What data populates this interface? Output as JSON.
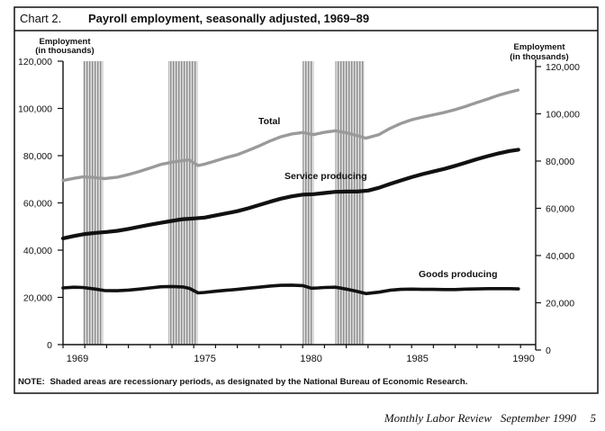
{
  "figure": {
    "label": "Chart 2.",
    "note": {
      "label": "NOTE:",
      "text": "Shaded areas are recessionary periods, as designated by the National Bureau of Economic Research."
    }
  },
  "footer": {
    "journal": "Monthly Labor Review",
    "issue": "September 1990",
    "page": "5"
  },
  "chart_data": {
    "type": "line",
    "title": "Payroll employment, seasonally adjusted, 1969–89",
    "ylabel": {
      "line1": "Employment",
      "line2": "(in thousands)"
    },
    "ylabel_right": {
      "line1": "Employment",
      "line2": "(in thousands)"
    },
    "xlim": [
      1969,
      1990.7
    ],
    "ylim": [
      0,
      120000
    ],
    "grid": false,
    "legend": "none",
    "xticks": {
      "values": [
        1969,
        1975,
        1980,
        1985,
        1990
      ],
      "labels": [
        "1969",
        "1975",
        "1980",
        "1985",
        "1990"
      ]
    },
    "yticks": {
      "values": [
        0,
        20000,
        40000,
        60000,
        80000,
        100000,
        120000
      ],
      "labels": [
        "0",
        "20,000",
        "40,000",
        "60,000",
        "80,000",
        "100,000",
        "120,000"
      ]
    },
    "yticks_right": {
      "values": [
        0,
        20000,
        40000,
        60000,
        80000,
        100000,
        120000
      ],
      "labels": [
        "0",
        "20,000",
        "40,000",
        "60,000",
        "80,000",
        "100,000",
        "120,000"
      ]
    },
    "shaded_periods": [
      {
        "start": 1969.92,
        "end": 1970.83
      },
      {
        "start": 1973.83,
        "end": 1975.17
      },
      {
        "start": 1980.0,
        "end": 1980.5
      },
      {
        "start": 1981.5,
        "end": 1982.83
      }
    ],
    "series": [
      {
        "name": "Total",
        "color": "#9a9a9a",
        "x": [
          1969.0,
          1969.5,
          1969.9,
          1970.4,
          1970.9,
          1971.5,
          1972.0,
          1972.5,
          1973.0,
          1973.5,
          1974.0,
          1974.5,
          1974.8,
          1975.2,
          1975.5,
          1976.0,
          1976.5,
          1977.0,
          1977.5,
          1978.0,
          1978.5,
          1979.0,
          1979.5,
          1980.0,
          1980.5,
          1981.0,
          1981.5,
          1982.0,
          1982.5,
          1982.9,
          1983.5,
          1984.0,
          1984.5,
          1985.0,
          1985.5,
          1986.0,
          1986.5,
          1987.0,
          1987.5,
          1988.0,
          1988.5,
          1989.0,
          1989.5,
          1989.9
        ],
        "y": [
          69500,
          70400,
          71000,
          70800,
          70300,
          70900,
          72000,
          73300,
          74800,
          76300,
          77200,
          77900,
          78200,
          75800,
          76400,
          77800,
          79200,
          80400,
          82200,
          84100,
          86200,
          88000,
          89200,
          89800,
          88900,
          89900,
          90500,
          89700,
          88500,
          87400,
          88900,
          91500,
          93600,
          95200,
          96300,
          97300,
          98300,
          99500,
          100900,
          102500,
          104000,
          105600,
          106900,
          107800
        ]
      },
      {
        "name": "Service producing",
        "color": "#111111",
        "x": [
          1969.0,
          1969.5,
          1970.0,
          1970.5,
          1971.0,
          1971.5,
          1972.0,
          1972.5,
          1973.0,
          1973.5,
          1974.0,
          1974.5,
          1975.0,
          1975.5,
          1976.0,
          1976.5,
          1977.0,
          1977.5,
          1978.0,
          1978.5,
          1979.0,
          1979.5,
          1980.0,
          1980.5,
          1981.0,
          1981.5,
          1982.0,
          1982.5,
          1983.0,
          1983.5,
          1984.0,
          1984.5,
          1985.0,
          1985.5,
          1986.0,
          1986.5,
          1987.0,
          1987.5,
          1988.0,
          1988.5,
          1989.0,
          1989.5,
          1989.9
        ],
        "y": [
          45000,
          46000,
          46800,
          47300,
          47700,
          48200,
          49000,
          49900,
          50800,
          51600,
          52400,
          53100,
          53400,
          53800,
          54700,
          55600,
          56500,
          57700,
          59100,
          60500,
          61800,
          62800,
          63500,
          63700,
          64200,
          64700,
          64800,
          64800,
          65200,
          66400,
          68000,
          69500,
          70900,
          72200,
          73300,
          74400,
          75700,
          77100,
          78500,
          79800,
          81000,
          82000,
          82500
        ]
      },
      {
        "name": "Goods producing",
        "color": "#111111",
        "x": [
          1969.0,
          1969.5,
          1969.9,
          1970.5,
          1970.9,
          1971.5,
          1972.0,
          1972.5,
          1973.0,
          1973.5,
          1974.0,
          1974.5,
          1974.8,
          1975.2,
          1975.5,
          1976.0,
          1976.5,
          1977.0,
          1977.5,
          1978.0,
          1978.5,
          1979.0,
          1979.5,
          1980.0,
          1980.4,
          1980.7,
          1981.0,
          1981.5,
          1982.0,
          1982.5,
          1982.9,
          1983.5,
          1984.0,
          1984.5,
          1985.0,
          1985.5,
          1986.0,
          1986.5,
          1987.0,
          1987.5,
          1988.0,
          1988.5,
          1989.0,
          1989.5,
          1989.9
        ],
        "y": [
          24000,
          24300,
          24200,
          23500,
          22900,
          22800,
          23100,
          23500,
          24000,
          24500,
          24600,
          24400,
          23800,
          21900,
          22100,
          22600,
          23000,
          23400,
          23900,
          24300,
          24800,
          25100,
          25200,
          25000,
          23900,
          24000,
          24200,
          24300,
          23500,
          22500,
          21600,
          22200,
          23000,
          23400,
          23500,
          23400,
          23400,
          23300,
          23300,
          23500,
          23600,
          23700,
          23700,
          23700,
          23600
        ]
      }
    ]
  }
}
